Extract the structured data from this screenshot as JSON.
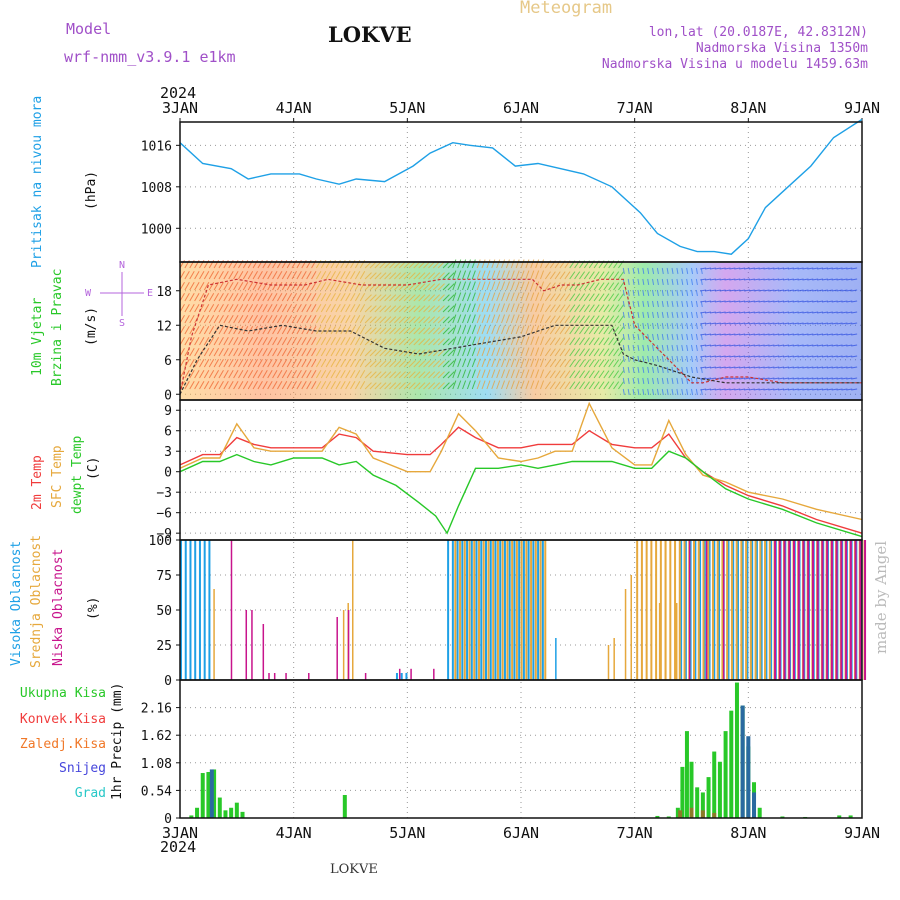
{
  "header": {
    "model_label": "Model",
    "model_name": "wrf-nmm_v3.9.1 e1km",
    "station": "LOKVE",
    "chart_title": "Meteogram",
    "coords": "lon,lat (20.0187E, 42.8312N)",
    "elevation": "Nadmorska Visina 1350m",
    "model_elevation": "Nadmorska Visina u modelu 1459.63m",
    "year": "2024",
    "bottom_station": "LOKVE",
    "credit": "made by Angel"
  },
  "colors": {
    "pressure": "#1ea0e6",
    "temp2m": "#f03c3c",
    "sfc": "#e6a83c",
    "dewpt": "#28c828",
    "visoka": "#1ea0e6",
    "srednja": "#e6a83c",
    "niska": "#c8148c",
    "ukupna": "#28c828",
    "konvek": "#f03c3c",
    "zaledj": "#f07828",
    "snijeg": "#4646dc",
    "grad": "#28c8c8",
    "credit": "#bbbbbb"
  },
  "chart_data": [
    {
      "type": "line",
      "panel": "pressure",
      "ylabel": [
        "Pritisak na nivou mora",
        "(hPa)"
      ],
      "y_ticks": [
        1000,
        1008,
        1016
      ],
      "ylim": [
        993.5,
        1020.5
      ],
      "x_ticks": [
        "3JAN",
        "4JAN",
        "5JAN",
        "6JAN",
        "7JAN",
        "8JAN",
        "9JAN"
      ],
      "grid": true,
      "series": [
        {
          "x": [
            0,
            0.2,
            0.45,
            0.6,
            0.8,
            1.05,
            1.2,
            1.4,
            1.55,
            1.8,
            2.05,
            2.2,
            2.4,
            2.55,
            2.75,
            2.95,
            3.15,
            3.35,
            3.55,
            3.8,
            4.05,
            4.2,
            4.4,
            4.55,
            4.7,
            4.85,
            5.0,
            5.15,
            5.35,
            5.55,
            5.75,
            6.0
          ],
          "values": [
            1016.5,
            1012.5,
            1011.5,
            1009.5,
            1010.5,
            1010.5,
            1009.5,
            1008.5,
            1009.5,
            1009,
            1012,
            1014.5,
            1016.5,
            1016,
            1015.5,
            1012,
            1012.5,
            1011.5,
            1010.5,
            1008,
            1003,
            999,
            996.5,
            995.5,
            995.5,
            995,
            998,
            1004,
            1008,
            1012,
            1017.5,
            1021
          ]
        }
      ]
    },
    {
      "type": "line",
      "panel": "wind",
      "ylabel": [
        "10m Vjetar",
        "Brzina i Pravac",
        "(m/s)"
      ],
      "compass": "N, E, S, W",
      "y_ticks": [
        0,
        6,
        12,
        18
      ],
      "ylim": [
        -1,
        23
      ],
      "grid": true,
      "series": [
        {
          "name": "gust",
          "x": [
            0,
            0.1,
            0.25,
            0.5,
            0.8,
            1.1,
            1.3,
            1.6,
            2.0,
            2.3,
            2.6,
            2.9,
            3.1,
            3.2,
            3.35,
            3.5,
            3.7,
            3.9,
            4.0,
            4.2,
            4.35,
            4.5,
            4.6,
            4.8,
            5.0,
            5.3,
            5.6,
            6.0
          ],
          "values": [
            0,
            10,
            19,
            20,
            19,
            19,
            20,
            19,
            19,
            20,
            20,
            20,
            20,
            18,
            19,
            19,
            20,
            20,
            12,
            8,
            5,
            2,
            2,
            3,
            3,
            2,
            2,
            2
          ]
        },
        {
          "name": "speed",
          "x": [
            0,
            0.15,
            0.35,
            0.6,
            0.9,
            1.2,
            1.5,
            1.8,
            2.1,
            2.4,
            2.7,
            3.0,
            3.3,
            3.6,
            3.8,
            3.9,
            4.0,
            4.2,
            4.5,
            4.8,
            5.1,
            5.4,
            5.7,
            6.0
          ],
          "values": [
            0,
            6,
            12,
            11,
            12,
            11,
            11,
            8,
            7,
            8,
            9,
            10,
            12,
            12,
            12,
            7,
            6,
            5,
            3,
            2,
            2,
            2,
            2,
            2
          ]
        }
      ]
    },
    {
      "type": "line",
      "panel": "temperature",
      "ylabel": [
        "2m Temp",
        "SFC Temp",
        "dewpt Temp",
        "(C)"
      ],
      "y_ticks": [
        -9,
        -6,
        -3,
        0,
        3,
        6,
        9
      ],
      "ylim": [
        -10,
        10.5
      ],
      "grid": true,
      "series": [
        {
          "name": "2m Temp",
          "x": [
            0,
            0.2,
            0.35,
            0.5,
            0.65,
            0.8,
            1.0,
            1.25,
            1.4,
            1.55,
            1.7,
            2.0,
            2.2,
            2.3,
            2.45,
            2.6,
            2.8,
            3.0,
            3.15,
            3.3,
            3.45,
            3.6,
            3.8,
            4.0,
            4.15,
            4.3,
            4.45,
            4.6,
            4.8,
            5.0,
            5.3,
            5.6,
            6.0
          ],
          "values": [
            1,
            2.5,
            2.5,
            5,
            4,
            3.5,
            3.5,
            3.5,
            5.5,
            5,
            3,
            2.5,
            2.5,
            4,
            6.5,
            5,
            3.5,
            3.5,
            4,
            4,
            4,
            6,
            4,
            3.5,
            3.5,
            5.5,
            2,
            0,
            -2,
            -3.5,
            -5,
            -7,
            -9
          ]
        },
        {
          "name": "SFC Temp",
          "x": [
            0,
            0.2,
            0.35,
            0.5,
            0.65,
            0.8,
            1.0,
            1.25,
            1.4,
            1.55,
            1.7,
            2.0,
            2.2,
            2.3,
            2.45,
            2.6,
            2.8,
            3.0,
            3.15,
            3.3,
            3.45,
            3.6,
            3.8,
            4.0,
            4.15,
            4.3,
            4.45,
            4.6,
            4.8,
            5.0,
            5.3,
            5.6,
            6.0
          ],
          "values": [
            0.5,
            2,
            2,
            7,
            3.5,
            3,
            3,
            3,
            6.5,
            5.5,
            2,
            0,
            0,
            3,
            8.5,
            6,
            2,
            1.5,
            2,
            3,
            3,
            10,
            3.5,
            1,
            1,
            7.5,
            2.5,
            -0.5,
            -1.5,
            -3,
            -4,
            -5.5,
            -7
          ]
        },
        {
          "name": "dewpt Temp",
          "x": [
            0,
            0.2,
            0.35,
            0.5,
            0.65,
            0.8,
            1.0,
            1.25,
            1.4,
            1.55,
            1.7,
            1.9,
            2.1,
            2.25,
            2.35,
            2.45,
            2.6,
            2.8,
            3.0,
            3.15,
            3.3,
            3.45,
            3.6,
            3.8,
            4.0,
            4.15,
            4.3,
            4.45,
            4.6,
            4.8,
            5.0,
            5.3,
            5.6,
            6.0
          ],
          "values": [
            0,
            1.5,
            1.5,
            2.5,
            1.5,
            1,
            2,
            2,
            1,
            1.5,
            -0.5,
            -2,
            -4.5,
            -6.5,
            -9,
            -5,
            0.5,
            0.5,
            1,
            0.5,
            1,
            1.5,
            1.5,
            1.5,
            0.5,
            0.5,
            3,
            2,
            0,
            -2.5,
            -4,
            -5.5,
            -7.5,
            -9.5
          ]
        }
      ]
    },
    {
      "type": "bar",
      "panel": "cloud",
      "ylabel": [
        "Visoka Oblacnost",
        "Srednja Oblacnost",
        "Niska Oblacnost",
        "(%)"
      ],
      "y_ticks": [
        0,
        25,
        50,
        75,
        100
      ],
      "ylim": [
        0,
        100
      ],
      "grid": true,
      "series": [
        {
          "name": "Visoka Oblacnost",
          "segments": [
            [
              0.0,
              0.25,
              100
            ],
            [
              1.9,
              2.0,
              5
            ],
            [
              2.35,
              3.2,
              100
            ],
            [
              4.4,
              6.0,
              100
            ]
          ],
          "points": [
            [
              3.3,
              30
            ]
          ]
        },
        {
          "name": "Srednja Oblacnost",
          "segments": [
            [
              2.4,
              3.2,
              100
            ],
            [
              4.0,
              6.0,
              100
            ]
          ],
          "points": [
            [
              0.28,
              65
            ],
            [
              1.42,
              50
            ],
            [
              1.46,
              55
            ],
            [
              1.5,
              100
            ],
            [
              3.75,
              25
            ],
            [
              3.8,
              30
            ],
            [
              3.9,
              65
            ],
            [
              3.95,
              75
            ],
            [
              4.2,
              55
            ],
            [
              4.25,
              100
            ],
            [
              4.35,
              55
            ]
          ]
        },
        {
          "name": "Niska Oblacnost",
          "segments": [
            [
              5.2,
              6.0,
              100
            ]
          ],
          "points": [
            [
              0.42,
              100
            ],
            [
              0.55,
              50
            ],
            [
              0.6,
              50
            ],
            [
              0.7,
              40
            ],
            [
              0.75,
              5
            ],
            [
              0.8,
              5
            ],
            [
              0.9,
              5
            ],
            [
              1.1,
              5
            ],
            [
              1.35,
              45
            ],
            [
              1.45,
              50
            ],
            [
              1.6,
              5
            ],
            [
              1.9,
              8
            ],
            [
              2.0,
              8
            ],
            [
              2.2,
              8
            ],
            [
              4.45,
              100
            ],
            [
              4.6,
              100
            ],
            [
              4.75,
              100
            ]
          ]
        }
      ]
    },
    {
      "type": "bar",
      "panel": "precipitation",
      "ylabel": [
        "1hr Precip (mm)"
      ],
      "legend": [
        "Ukupna Kisa",
        "Konvek.Kisa",
        "Zaledj.Kisa",
        "Snijeg",
        "Grad"
      ],
      "y_ticks": [
        0,
        0.54,
        1.08,
        1.62,
        2.16
      ],
      "ylim": [
        0,
        2.7
      ],
      "grid": true,
      "series": [
        {
          "name": "Ukupna Kisa",
          "x": [
            0.1,
            0.15,
            0.2,
            0.25,
            0.3,
            0.35,
            0.4,
            0.45,
            0.5,
            0.55,
            1.45,
            4.2,
            4.3,
            4.38,
            4.42,
            4.46,
            4.5,
            4.55,
            4.6,
            4.65,
            4.7,
            4.75,
            4.8,
            4.85,
            4.9,
            4.95,
            5.0,
            5.05,
            5.1,
            5.3,
            5.5,
            5.8,
            5.9
          ],
          "values": [
            0.05,
            0.2,
            0.88,
            0.9,
            0.95,
            0.4,
            0.15,
            0.2,
            0.3,
            0.12,
            0.45,
            0.04,
            0.03,
            0.2,
            1.0,
            1.7,
            1.1,
            0.6,
            0.5,
            0.8,
            1.3,
            1.1,
            1.7,
            2.1,
            2.65,
            2.2,
            1.4,
            0.7,
            0.2,
            0.03,
            0.02,
            0.05,
            0.05
          ]
        },
        {
          "name": "Konvek.Kisa",
          "x": [
            4.4,
            4.5,
            4.6,
            4.7
          ],
          "values": [
            0.15,
            0.2,
            0.15,
            0.1
          ]
        },
        {
          "name": "Snijeg",
          "x": [
            0.28,
            4.95,
            5.0,
            5.05
          ],
          "values": [
            0.95,
            2.2,
            1.6,
            0.5
          ]
        }
      ]
    }
  ],
  "legend_labels": {
    "ukupna": "Ukupna Kisa",
    "konvek": "Konvek.Kisa",
    "zaledj": "Zaledj.Kisa",
    "snijeg": "Snijeg",
    "grad": "Grad"
  },
  "axis_labels": {
    "pressure_name": "Pritisak na nivou mora",
    "pressure_unit": "(hPa)",
    "wind_name1": "10m Vjetar",
    "wind_name2": "Brzina i Pravac",
    "wind_unit": "(m/s)",
    "temp2m": "2m Temp",
    "sfc": "SFC Temp",
    "dewpt": "dewpt Temp",
    "temp_unit": "(C)",
    "visoka": "Visoka Oblacnost",
    "srednja": "Srednja Oblacnost",
    "niska": "Niska Oblacnost",
    "cloud_unit": "(%)",
    "precip_unit": "1hr Precip (mm)"
  }
}
